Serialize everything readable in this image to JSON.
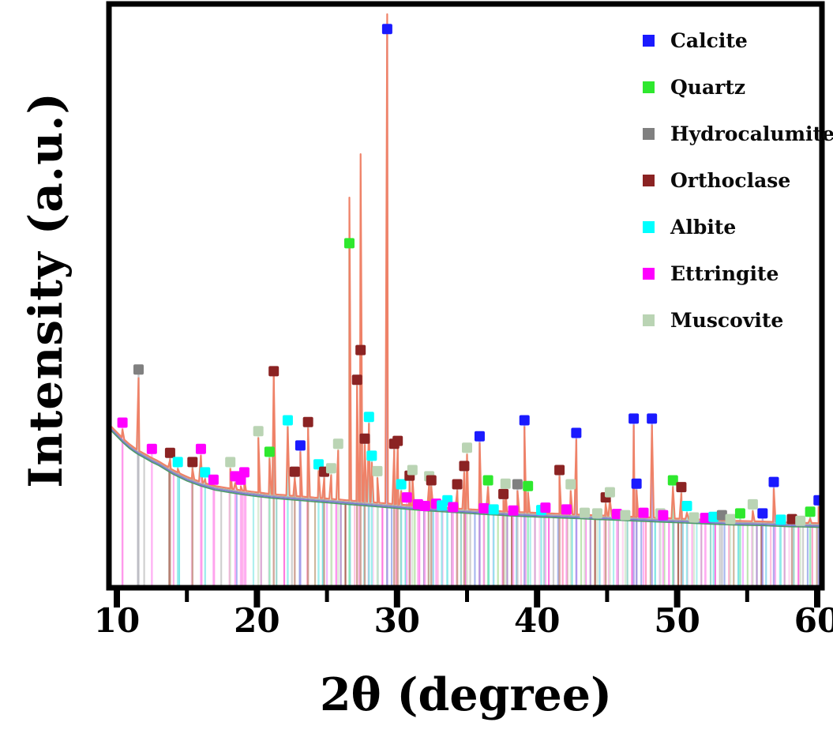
{
  "figure": {
    "x_axis_title": "2θ (degree)",
    "y_axis_title": "Intensity (a.u.)"
  },
  "legend": {
    "items": [
      {
        "label": "Calcite",
        "color": "#1a1aff"
      },
      {
        "label": "Quartz",
        "color": "#2ee82e"
      },
      {
        "label": "Hydrocalumite",
        "color": "#808080"
      },
      {
        "label": "Orthoclase",
        "color": "#8b2323"
      },
      {
        "label": "Albite",
        "color": "#00ffff"
      },
      {
        "label": "Ettringite",
        "color": "#ff00ff"
      },
      {
        "label": "Muscovite",
        "color": "#bad4b4"
      }
    ]
  },
  "chart_data": {
    "type": "line",
    "subtype": "xrd-pattern",
    "title": "",
    "xlabel": "2θ (degree)",
    "ylabel": "Intensity (a.u.)",
    "x_range": [
      9.6,
      60.7
    ],
    "x_major_ticks": [
      10,
      20,
      30,
      40,
      50,
      60
    ],
    "x_minor_ticks": [
      15,
      25,
      35,
      45,
      55
    ],
    "y_units": "arbitrary (relative intensity 0-100)",
    "grid": false,
    "legend_position": "upper right",
    "curve_color": "#ef8268",
    "companion_curve_colors": [
      "#a8a8a8",
      "#7a78d8",
      "#4f9a6a"
    ],
    "phases": [
      {
        "name": "Calcite",
        "color": "#1a1aff",
        "stick": "#9a8fe8"
      },
      {
        "name": "Quartz",
        "color": "#2ee82e",
        "stick": "#7fe8b0"
      },
      {
        "name": "Hydrocalumite",
        "color": "#808080",
        "stick": "#b8b8c0"
      },
      {
        "name": "Orthoclase",
        "color": "#8b2323",
        "stick": "#c08878"
      },
      {
        "name": "Albite",
        "color": "#00ffff",
        "stick": "#7fe8e8"
      },
      {
        "name": "Ettringite",
        "color": "#ff00ff",
        "stick": "#ff9af0"
      },
      {
        "name": "Muscovite",
        "color": "#bad4b4",
        "stick": "#cfe4c8"
      }
    ],
    "baseline": [
      [
        9.6,
        27.8
      ],
      [
        10.0,
        26.8
      ],
      [
        10.4,
        25.8
      ],
      [
        10.9,
        24.7
      ],
      [
        11.3,
        24.0
      ],
      [
        11.55,
        23.6
      ],
      [
        12.0,
        23.0
      ],
      [
        12.5,
        22.3
      ],
      [
        13.0,
        21.7
      ],
      [
        14.0,
        20.2
      ],
      [
        15.0,
        19.0
      ],
      [
        16.0,
        18.1
      ],
      [
        17.0,
        17.4
      ],
      [
        18.0,
        17.0
      ],
      [
        19.0,
        16.6
      ],
      [
        20.0,
        16.3
      ],
      [
        21.0,
        16.0
      ],
      [
        22.0,
        15.8
      ],
      [
        23.0,
        15.6
      ],
      [
        24.0,
        15.4
      ],
      [
        25.0,
        15.2
      ],
      [
        26.0,
        15.0
      ],
      [
        27.0,
        14.8
      ],
      [
        28.0,
        14.6
      ],
      [
        29.0,
        14.4
      ],
      [
        30.0,
        14.2
      ],
      [
        31.0,
        14.0
      ],
      [
        32.0,
        13.8
      ],
      [
        33.0,
        13.65
      ],
      [
        34.0,
        13.5
      ],
      [
        35.0,
        13.35
      ],
      [
        36.0,
        13.2
      ],
      [
        37.0,
        13.05
      ],
      [
        38.0,
        12.9
      ],
      [
        39.0,
        12.8
      ],
      [
        40.0,
        12.7
      ],
      [
        41.0,
        12.6
      ],
      [
        42.0,
        12.5
      ],
      [
        43.0,
        12.4
      ],
      [
        44.0,
        12.3
      ],
      [
        45.0,
        12.2
      ],
      [
        46.0,
        12.1
      ],
      [
        47.0,
        12.0
      ],
      [
        48.0,
        11.9
      ],
      [
        49.0,
        11.8
      ],
      [
        50.0,
        11.7
      ],
      [
        51.0,
        11.6
      ],
      [
        52.0,
        11.5
      ],
      [
        53.0,
        11.4
      ],
      [
        54.0,
        11.3
      ],
      [
        55.0,
        11.25
      ],
      [
        56.0,
        11.2
      ],
      [
        57.0,
        11.1
      ],
      [
        58.0,
        11.0
      ],
      [
        59.0,
        10.95
      ],
      [
        60.0,
        10.9
      ],
      [
        60.6,
        10.85
      ]
    ],
    "markers_note": "each marker = [two_theta, marker_intensity, phase_index, optional_curve_peak_intensity]",
    "markers": [
      [
        10.4,
        28.5,
        5
      ],
      [
        11.55,
        37.8,
        2,
        36.3
      ],
      [
        12.5,
        23.9,
        5
      ],
      [
        13.8,
        23.2,
        3
      ],
      [
        14.35,
        21.6,
        4
      ],
      [
        15.4,
        21.6,
        3
      ],
      [
        16.0,
        23.9,
        5
      ],
      [
        16.3,
        19.8,
        4
      ],
      [
        16.9,
        18.5,
        5
      ],
      [
        18.1,
        21.6,
        6
      ],
      [
        18.45,
        19.1,
        5
      ],
      [
        18.85,
        18.5,
        5
      ],
      [
        19.1,
        19.8,
        5
      ],
      [
        20.1,
        27.0,
        6
      ],
      [
        20.9,
        23.4,
        1
      ],
      [
        21.2,
        37.5,
        3,
        36.8
      ],
      [
        22.2,
        28.9,
        4
      ],
      [
        22.7,
        19.9,
        3
      ],
      [
        23.1,
        24.5,
        0
      ],
      [
        23.65,
        28.6,
        3
      ],
      [
        24.4,
        21.2,
        4
      ],
      [
        24.8,
        19.9,
        3
      ],
      [
        25.3,
        20.5,
        6
      ],
      [
        25.8,
        24.8,
        6
      ],
      [
        26.6,
        59.9,
        1,
        67.9
      ],
      [
        27.15,
        36.0,
        3
      ],
      [
        27.4,
        41.2,
        3,
        75.5
      ],
      [
        27.7,
        25.7,
        3
      ],
      [
        28.0,
        29.5,
        4
      ],
      [
        28.2,
        22.7,
        4
      ],
      [
        28.6,
        20.0,
        6
      ],
      [
        29.3,
        97.4,
        0,
        100
      ],
      [
        29.8,
        24.8,
        3
      ],
      [
        30.05,
        25.3,
        3
      ],
      [
        30.3,
        17.7,
        4
      ],
      [
        30.7,
        15.4,
        5
      ],
      [
        30.9,
        19.2,
        3
      ],
      [
        31.1,
        20.2,
        6
      ],
      [
        31.5,
        14.2,
        5
      ],
      [
        32.0,
        13.9,
        5
      ],
      [
        32.3,
        19.1,
        6
      ],
      [
        32.45,
        18.4,
        3
      ],
      [
        32.8,
        14.3,
        5
      ],
      [
        33.2,
        14.0,
        4
      ],
      [
        33.6,
        14.9,
        4
      ],
      [
        34.0,
        13.7,
        5
      ],
      [
        34.3,
        17.7,
        3
      ],
      [
        34.8,
        20.9,
        3
      ],
      [
        35.0,
        24.1,
        6
      ],
      [
        35.9,
        26.1,
        0
      ],
      [
        36.2,
        13.5,
        5
      ],
      [
        36.5,
        18.4,
        1
      ],
      [
        36.9,
        13.3,
        4
      ],
      [
        37.6,
        16.0,
        3
      ],
      [
        37.75,
        17.8,
        6
      ],
      [
        38.3,
        13.1,
        5
      ],
      [
        38.6,
        17.7,
        2
      ],
      [
        39.1,
        28.9,
        0
      ],
      [
        39.35,
        17.4,
        1
      ],
      [
        40.3,
        13.2,
        4
      ],
      [
        40.6,
        13.6,
        5
      ],
      [
        41.6,
        20.2,
        3
      ],
      [
        42.1,
        13.3,
        5
      ],
      [
        42.4,
        17.7,
        6
      ],
      [
        42.8,
        26.7,
        0
      ],
      [
        43.4,
        12.7,
        6
      ],
      [
        44.3,
        12.6,
        6
      ],
      [
        44.9,
        15.4,
        3
      ],
      [
        45.2,
        16.3,
        6
      ],
      [
        45.7,
        12.5,
        5
      ],
      [
        46.3,
        12.3,
        6
      ],
      [
        46.9,
        29.2,
        0
      ],
      [
        47.1,
        17.8,
        0
      ],
      [
        47.6,
        12.7,
        5
      ],
      [
        48.2,
        29.2,
        0
      ],
      [
        48.8,
        12.6,
        6
      ],
      [
        49.0,
        12.3,
        5
      ],
      [
        49.7,
        18.4,
        1
      ],
      [
        50.3,
        17.2,
        3
      ],
      [
        50.7,
        13.9,
        4
      ],
      [
        51.2,
        11.9,
        6
      ],
      [
        52.0,
        11.8,
        5
      ],
      [
        52.6,
        12.0,
        4
      ],
      [
        53.2,
        12.3,
        2
      ],
      [
        53.8,
        11.6,
        6
      ],
      [
        54.5,
        12.6,
        1
      ],
      [
        55.4,
        14.2,
        6
      ],
      [
        56.1,
        12.6,
        0
      ],
      [
        56.9,
        18.1,
        0
      ],
      [
        57.4,
        11.5,
        4
      ],
      [
        58.2,
        11.6,
        3
      ],
      [
        58.8,
        11.3,
        6
      ],
      [
        59.5,
        12.9,
        1
      ],
      [
        60.1,
        14.9,
        0
      ],
      [
        60.6,
        12.6,
        0
      ]
    ],
    "reference_sticks": {
      "sparse": [
        [
          10.4,
          "#ff9ae0"
        ],
        [
          11.5,
          "#c0c0c8"
        ],
        [
          11.95,
          "#d0d0d0"
        ],
        [
          13.75,
          "#a06a5a"
        ],
        [
          14.05,
          "#ffb0e8"
        ],
        [
          14.45,
          "#7fe8e8"
        ],
        [
          15.35,
          "#ffc8ec"
        ],
        [
          16.05,
          "#ff9ae0"
        ],
        [
          16.95,
          "#ffb0e8"
        ],
        [
          17.45,
          "#d0d0d0"
        ],
        [
          18.05,
          "#ff9ae0"
        ],
        [
          18.55,
          "#a0b4f0"
        ],
        [
          18.95,
          "#ffb0e8"
        ]
      ],
      "dense_ranges": [
        {
          "from": 19.2,
          "to": 25.0,
          "step": 0.55
        },
        {
          "from": 25.0,
          "to": 60.55,
          "step": 0.33
        }
      ],
      "palette": [
        "#ffb3ef",
        "#aef0ee",
        "#d9a7d4",
        "#ffd6f2",
        "#9fd8cf",
        "#ff7ae0",
        "#cfcfcf",
        "#a9b7ef",
        "#ffa3c8",
        "#cfb79e",
        "#7fe4e4",
        "#f2b6ff",
        "#bfe6b2",
        "#ff90f0",
        "#b79ad1",
        "#b06a5e",
        "#9adbef",
        "#ffc2e0"
      ]
    }
  }
}
